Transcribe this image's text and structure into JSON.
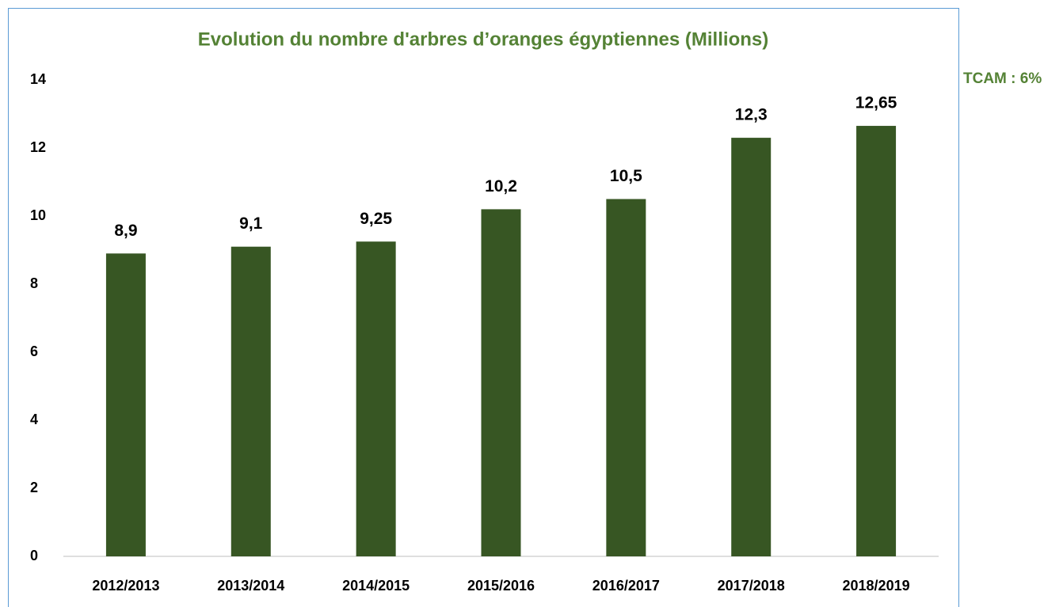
{
  "chart_data": {
    "type": "bar",
    "title": "Evolution du nombre d'arbres d’oranges égyptiennes (Millions)",
    "annotation": "TCAM : 6%",
    "categories": [
      "2012/2013",
      "2013/2014",
      "2014/2015",
      "2015/2016",
      "2016/2017",
      "2017/2018",
      "2018/2019"
    ],
    "values": [
      8.9,
      9.1,
      9.25,
      10.2,
      10.5,
      12.3,
      12.65
    ],
    "value_labels": [
      "8,9",
      "9,1",
      "9,25",
      "10,2",
      "10,5",
      "12,3",
      "12,65"
    ],
    "color": "#375623",
    "ylim": [
      0,
      14
    ],
    "yticks": [
      0,
      2,
      4,
      6,
      8,
      10,
      12,
      14
    ],
    "grid": false
  }
}
